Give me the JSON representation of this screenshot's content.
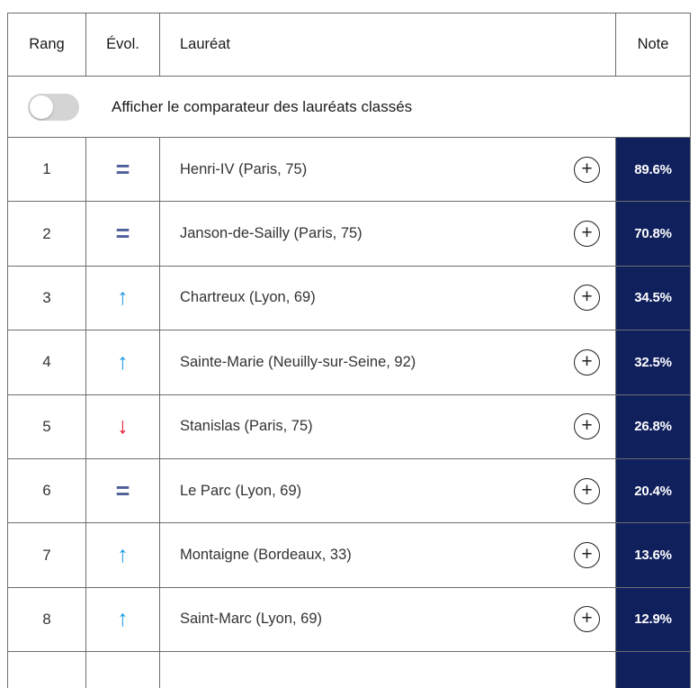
{
  "header": {
    "rank": "Rang",
    "evolution": "Évol.",
    "laureate": "Lauréat",
    "note": "Note"
  },
  "comparator": {
    "label": "Afficher le comparateur des lauréats classés",
    "state": "off"
  },
  "icons": {
    "plus": "+",
    "up": "↑",
    "down": "↓",
    "equal": "="
  },
  "colors": {
    "note_bg": "#10205d",
    "up": "#1e9ae0",
    "down": "#e8112d",
    "equal": "#4e5f99",
    "border": "#6d6d6d"
  },
  "rows": [
    {
      "rank": "1",
      "evolution": "equal",
      "laureate": "Henri-IV (Paris, 75)",
      "note": "89.6%"
    },
    {
      "rank": "2",
      "evolution": "equal",
      "laureate": "Janson-de-Sailly (Paris, 75)",
      "note": "70.8%"
    },
    {
      "rank": "3",
      "evolution": "up",
      "laureate": "Chartreux (Lyon, 69)",
      "note": "34.5%"
    },
    {
      "rank": "4",
      "evolution": "up",
      "laureate": "Sainte-Marie (Neuilly-sur-Seine, 92)",
      "note": "32.5%"
    },
    {
      "rank": "5",
      "evolution": "down",
      "laureate": "Stanislas (Paris, 75)",
      "note": "26.8%"
    },
    {
      "rank": "6",
      "evolution": "equal",
      "laureate": "Le Parc (Lyon, 69)",
      "note": "20.4%"
    },
    {
      "rank": "7",
      "evolution": "up",
      "laureate": "Montaigne (Bordeaux, 33)",
      "note": "13.6%"
    },
    {
      "rank": "8",
      "evolution": "up",
      "laureate": "Saint-Marc (Lyon, 69)",
      "note": "12.9%"
    }
  ]
}
